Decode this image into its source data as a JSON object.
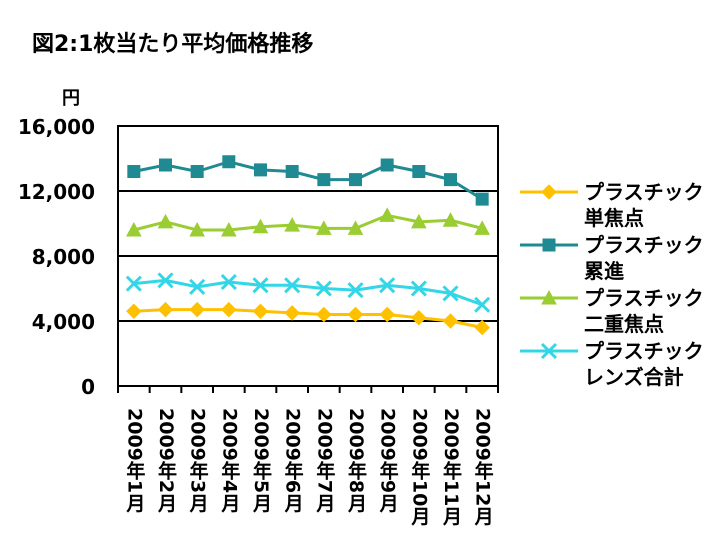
{
  "chart_data": {
    "type": "line",
    "title": "図2:1枚当たり平均価格推移",
    "y_unit": "円",
    "ylim": [
      0,
      16000
    ],
    "yticks": [
      0,
      4000,
      8000,
      12000,
      16000
    ],
    "ytick_labels": [
      "0",
      "4,000",
      "8,000",
      "12,000",
      "16,000"
    ],
    "categories": [
      "2009年1月",
      "2009年2月",
      "2009年3月",
      "2009年4月",
      "2009年5月",
      "2009年6月",
      "2009年7月",
      "2009年8月",
      "2009年9月",
      "2009年10月",
      "2009年11月",
      "2009年12月"
    ],
    "grid": true,
    "legend_position": "right",
    "series": [
      {
        "name": "プラスチック単焦点",
        "name_lines": [
          "プラスチック",
          "単焦点"
        ],
        "color": "#FFC000",
        "marker": "diamond",
        "values": [
          4600,
          4700,
          4700,
          4700,
          4600,
          4500,
          4400,
          4400,
          4400,
          4200,
          4000,
          3600
        ]
      },
      {
        "name": "プラスチック累進",
        "name_lines": [
          "プラスチック",
          "累進"
        ],
        "color": "#1F8A92",
        "marker": "square",
        "values": [
          13200,
          13600,
          13200,
          13800,
          13300,
          13200,
          12700,
          12700,
          13600,
          13200,
          12700,
          11500
        ]
      },
      {
        "name": "プラスチック二重焦点",
        "name_lines": [
          "プラスチック",
          "二重焦点"
        ],
        "color": "#9ACD32",
        "marker": "triangle",
        "values": [
          9600,
          10100,
          9600,
          9600,
          9800,
          9900,
          9700,
          9700,
          10500,
          10100,
          10200,
          9700
        ]
      },
      {
        "name": "プラスチックレンズ合計",
        "name_lines": [
          "プラスチック",
          "レンズ合計"
        ],
        "color": "#33D6E6",
        "marker": "x",
        "values": [
          6300,
          6500,
          6100,
          6400,
          6200,
          6200,
          6000,
          5900,
          6200,
          6000,
          5700,
          5000
        ]
      }
    ]
  }
}
